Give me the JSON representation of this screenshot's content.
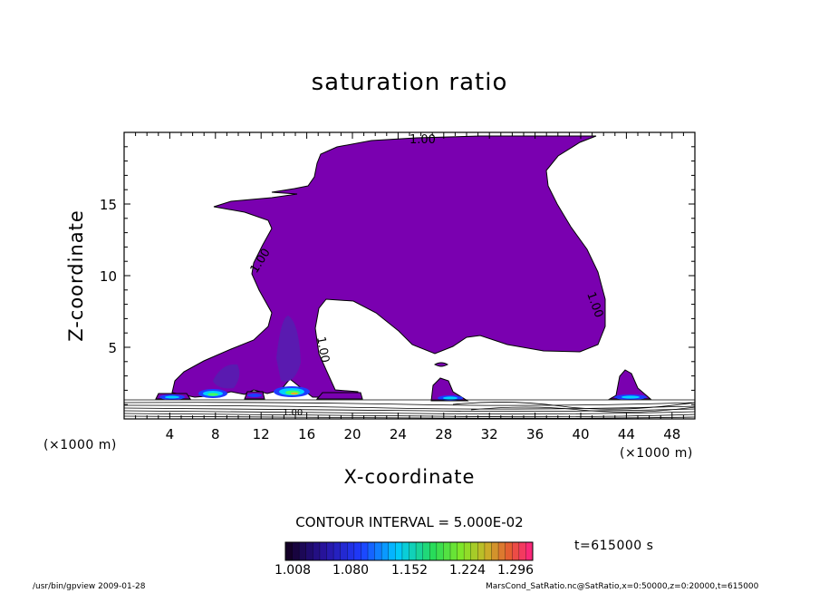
{
  "chart_data": {
    "type": "contour",
    "title": "saturation ratio",
    "xlabel": "X-coordinate",
    "ylabel": "Z-coordinate",
    "x_unit": "(×1000 m)",
    "xlim": [
      0,
      50
    ],
    "ylim": [
      0,
      20
    ],
    "x_ticks": [
      4,
      8,
      12,
      16,
      20,
      24,
      28,
      32,
      36,
      40,
      44,
      48
    ],
    "y_ticks": [
      5,
      10,
      15
    ],
    "contour_interval": "CONTOUR INTERVAL = 5.000E-02",
    "contour_labels": [
      "1.00",
      "1.00",
      "1.00",
      "1.00",
      "1.00"
    ],
    "fill_color_threshold": "#7a00b0",
    "colorbar": {
      "ticks": [
        "1.008",
        "1.080",
        "1.152",
        "1.224",
        "1.296"
      ],
      "range": [
        1.008,
        1.296
      ]
    },
    "regions_above_1": [
      {
        "name": "main cloud",
        "x_range": [
          10,
          42
        ],
        "z_range": [
          1.5,
          19.5
        ]
      },
      {
        "name": "left plume",
        "x_range": [
          3,
          21
        ],
        "z_range": [
          0.7,
          7
        ]
      },
      {
        "name": "cap near x=28",
        "x_range": [
          26.5,
          30
        ],
        "z_range": [
          1,
          3
        ]
      },
      {
        "name": "cap near x=45",
        "x_range": [
          43,
          46.5
        ],
        "z_range": [
          1,
          3.5
        ]
      }
    ]
  },
  "labels": {
    "time": "t=615000 s",
    "footer_left": "/usr/bin/gpview   2009-01-28",
    "footer_right": "MarsCond_SatRatio.nc@SatRatio,x=0:50000,z=0:20000,t=615000"
  }
}
